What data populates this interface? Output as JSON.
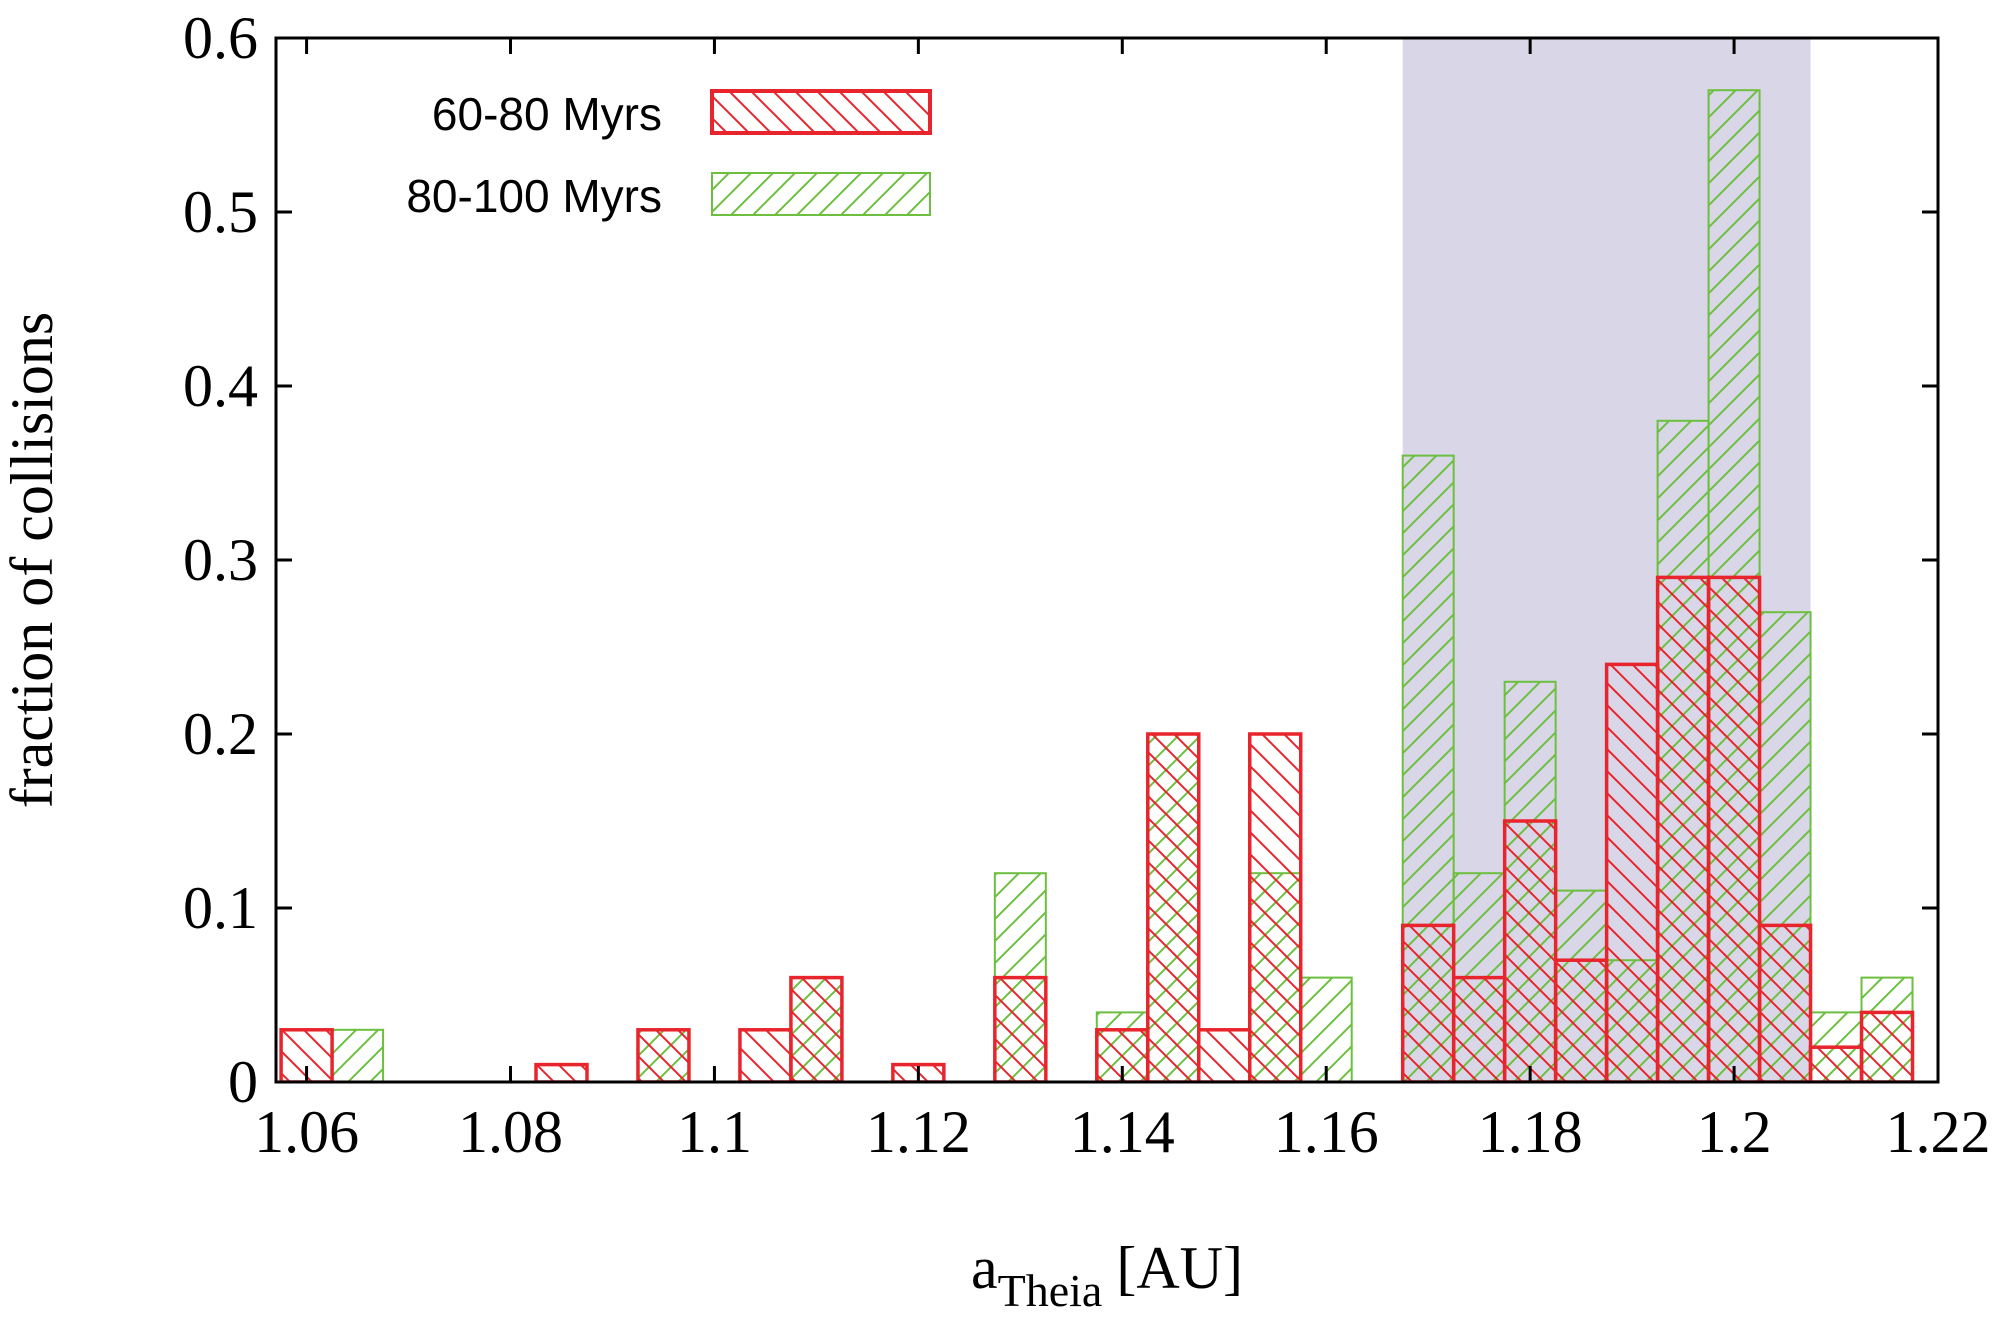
{
  "chart_data": {
    "type": "bar",
    "xlabel": "a",
    "xlabel_subscript": "Theia",
    "xlabel_unit": "[AU]",
    "ylabel": "fraction of collisions",
    "xlim": [
      1.057,
      1.22
    ],
    "ylim": [
      0,
      0.6
    ],
    "x_ticks": [
      "1.06",
      "1.08",
      "1.1",
      "1.12",
      "1.14",
      "1.16",
      "1.18",
      "1.2",
      "1.22"
    ],
    "x_tick_values": [
      1.06,
      1.08,
      1.1,
      1.12,
      1.14,
      1.16,
      1.18,
      1.2,
      1.22
    ],
    "y_ticks": [
      "0",
      "0.1",
      "0.2",
      "0.3",
      "0.4",
      "0.5",
      "0.6"
    ],
    "y_tick_values": [
      0,
      0.1,
      0.2,
      0.3,
      0.4,
      0.5,
      0.6
    ],
    "bin_width": 0.005,
    "highlight_region": {
      "from": 1.1675,
      "to": 1.2075,
      "color": "#d9d6e8"
    },
    "legend_position": "top-left",
    "series": [
      {
        "name": "60-80 Myrs",
        "color": "#e8242c",
        "hatch": "backslash",
        "bins": [
          {
            "x": 1.06,
            "y": 0.03
          },
          {
            "x": 1.085,
            "y": 0.01
          },
          {
            "x": 1.095,
            "y": 0.03
          },
          {
            "x": 1.105,
            "y": 0.03
          },
          {
            "x": 1.11,
            "y": 0.06
          },
          {
            "x": 1.12,
            "y": 0.01
          },
          {
            "x": 1.13,
            "y": 0.06
          },
          {
            "x": 1.14,
            "y": 0.03
          },
          {
            "x": 1.145,
            "y": 0.2
          },
          {
            "x": 1.15,
            "y": 0.03
          },
          {
            "x": 1.155,
            "y": 0.2
          },
          {
            "x": 1.17,
            "y": 0.09
          },
          {
            "x": 1.175,
            "y": 0.06
          },
          {
            "x": 1.18,
            "y": 0.15
          },
          {
            "x": 1.185,
            "y": 0.07
          },
          {
            "x": 1.19,
            "y": 0.24
          },
          {
            "x": 1.195,
            "y": 0.29
          },
          {
            "x": 1.2,
            "y": 0.29
          },
          {
            "x": 1.205,
            "y": 0.09
          },
          {
            "x": 1.21,
            "y": 0.02
          },
          {
            "x": 1.215,
            "y": 0.04
          }
        ]
      },
      {
        "name": "80-100 Myrs",
        "color": "#6cbf3f",
        "hatch": "slash",
        "bins": [
          {
            "x": 1.065,
            "y": 0.03
          },
          {
            "x": 1.095,
            "y": 0.03
          },
          {
            "x": 1.11,
            "y": 0.06
          },
          {
            "x": 1.13,
            "y": 0.12
          },
          {
            "x": 1.14,
            "y": 0.04
          },
          {
            "x": 1.145,
            "y": 0.2
          },
          {
            "x": 1.155,
            "y": 0.12
          },
          {
            "x": 1.16,
            "y": 0.06
          },
          {
            "x": 1.17,
            "y": 0.36
          },
          {
            "x": 1.175,
            "y": 0.12
          },
          {
            "x": 1.18,
            "y": 0.23
          },
          {
            "x": 1.185,
            "y": 0.11
          },
          {
            "x": 1.19,
            "y": 0.07
          },
          {
            "x": 1.195,
            "y": 0.38
          },
          {
            "x": 1.2,
            "y": 0.57
          },
          {
            "x": 1.205,
            "y": 0.27
          },
          {
            "x": 1.21,
            "y": 0.04
          },
          {
            "x": 1.215,
            "y": 0.06
          }
        ]
      }
    ]
  }
}
